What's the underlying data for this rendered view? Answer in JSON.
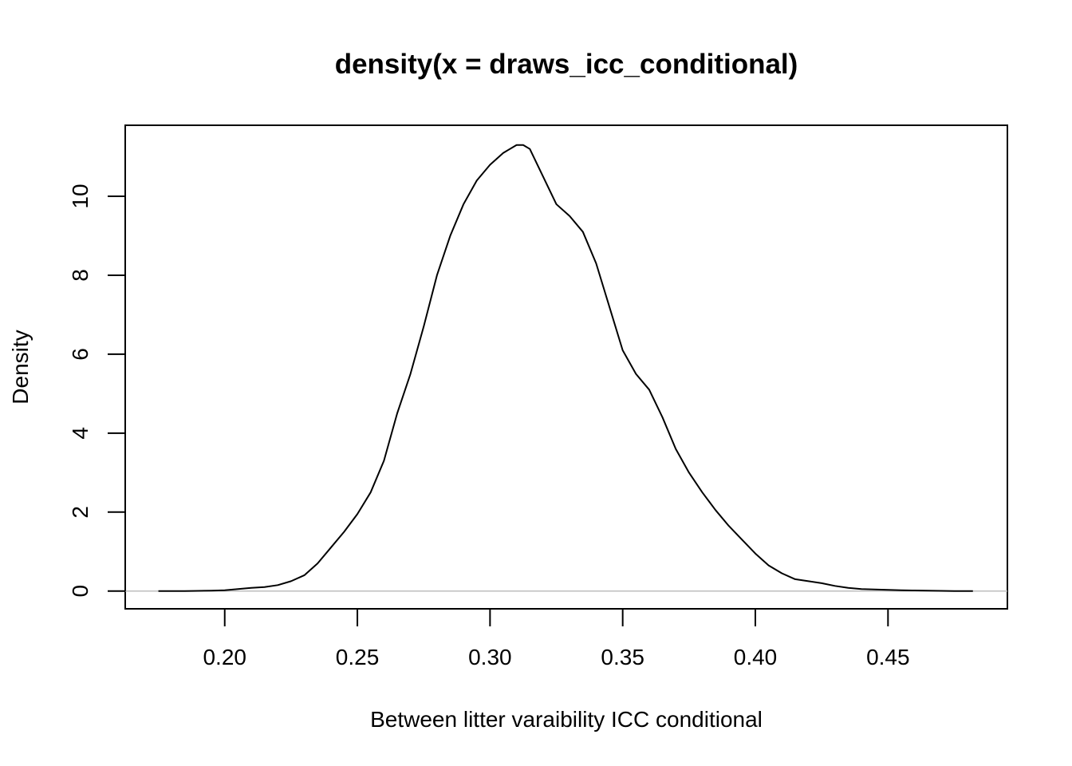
{
  "chart_data": {
    "type": "line",
    "title": "density(x = draws_icc_conditional)",
    "xlabel": "Between litter varaibility ICC conditional",
    "ylabel": "Density",
    "xlim": [
      0.1625,
      0.495
    ],
    "ylim": [
      -0.45,
      11.8
    ],
    "x_ticks": [
      0.2,
      0.25,
      0.3,
      0.35,
      0.4,
      0.45
    ],
    "x_tick_labels": [
      "0.20",
      "0.25",
      "0.30",
      "0.35",
      "0.40",
      "0.45"
    ],
    "y_ticks": [
      0,
      2,
      4,
      6,
      8,
      10
    ],
    "y_tick_labels": [
      "0",
      "2",
      "4",
      "6",
      "8",
      "10"
    ],
    "zero_line": true,
    "grid": false,
    "series": [
      {
        "x": [
          0.175,
          0.18,
          0.185,
          0.19,
          0.195,
          0.2,
          0.205,
          0.21,
          0.215,
          0.22,
          0.225,
          0.23,
          0.235,
          0.24,
          0.245,
          0.25,
          0.255,
          0.26,
          0.265,
          0.27,
          0.275,
          0.28,
          0.285,
          0.29,
          0.295,
          0.3,
          0.305,
          0.31,
          0.3125,
          0.315,
          0.32,
          0.325,
          0.33,
          0.335,
          0.34,
          0.345,
          0.35,
          0.355,
          0.36,
          0.365,
          0.37,
          0.375,
          0.38,
          0.385,
          0.39,
          0.395,
          0.4,
          0.405,
          0.41,
          0.415,
          0.42,
          0.425,
          0.43,
          0.435,
          0.44,
          0.445,
          0.45,
          0.455,
          0.46,
          0.465,
          0.47,
          0.475,
          0.482
        ],
        "y": [
          0.0,
          0.0,
          0.0,
          0.005,
          0.01,
          0.02,
          0.05,
          0.08,
          0.1,
          0.15,
          0.25,
          0.4,
          0.7,
          1.1,
          1.5,
          1.95,
          2.5,
          3.3,
          4.5,
          5.5,
          6.7,
          8.0,
          9.0,
          9.8,
          10.4,
          10.8,
          11.1,
          11.3,
          11.3,
          11.2,
          10.5,
          9.8,
          9.5,
          9.1,
          8.3,
          7.2,
          6.1,
          5.5,
          5.1,
          4.4,
          3.6,
          3.0,
          2.5,
          2.05,
          1.65,
          1.3,
          0.95,
          0.65,
          0.45,
          0.3,
          0.25,
          0.2,
          0.13,
          0.08,
          0.05,
          0.04,
          0.03,
          0.02,
          0.015,
          0.01,
          0.005,
          0.0,
          0.0
        ]
      }
    ]
  }
}
